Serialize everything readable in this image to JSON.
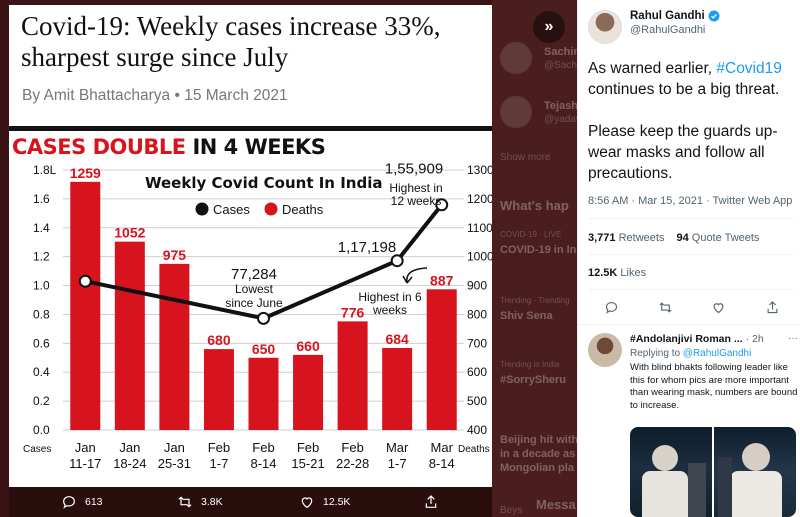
{
  "media": {
    "headline": "Covid-19: Weekly cases increase 33%, sharpest surge since July",
    "byline": "By Amit Bhattacharya • 15 March 2021",
    "graphic_title_red": "CASES DOUBLE",
    "graphic_title_black": "IN 4 WEEKS"
  },
  "chart_data": {
    "type": "bar",
    "title": "Weekly Covid Count In India",
    "legend": [
      "Cases",
      "Deaths"
    ],
    "categories": [
      [
        "Jan",
        "11-17"
      ],
      [
        "Jan",
        "18-24"
      ],
      [
        "Jan",
        "25-31"
      ],
      [
        "Feb",
        "1-7"
      ],
      [
        "Feb",
        "8-14"
      ],
      [
        "Feb",
        "15-21"
      ],
      [
        "Feb",
        "22-28"
      ],
      [
        "Mar",
        "1-7"
      ],
      [
        "Mar",
        "8-14"
      ]
    ],
    "series": [
      {
        "name": "Deaths",
        "type": "bar",
        "axis": "right",
        "values": [
          1259,
          1052,
          975,
          680,
          650,
          660,
          776,
          684,
          887
        ]
      },
      {
        "name": "Cases",
        "type": "line",
        "axis": "left",
        "unit": "L",
        "values": [
          1.03,
          null,
          null,
          null,
          0.77284,
          null,
          null,
          1.17198,
          1.55909
        ]
      }
    ],
    "left_axis": {
      "label": "Cases",
      "ticks": [
        "0.0",
        "0.2",
        "0.4",
        "0.6",
        "0.8",
        "1.0",
        "1.2",
        "1.4",
        "1.6",
        "1.8L"
      ],
      "ylim": [
        0,
        1.8
      ]
    },
    "right_axis": {
      "label": "Deaths",
      "ticks": [
        "400",
        "500",
        "600",
        "700",
        "800",
        "900",
        "1000",
        "1100",
        "1200",
        "1300"
      ],
      "ylim": [
        400,
        1300
      ]
    },
    "annotations": [
      {
        "value": "1,55,909",
        "lines": [
          "Highest in",
          "12 weeks"
        ]
      },
      {
        "value": "77,284",
        "lines": [
          "Lowest",
          "since June"
        ]
      },
      {
        "value": "1,17,198",
        "lines": [
          "Highest in 6",
          "weeks"
        ]
      }
    ]
  },
  "media_actions": {
    "replies": "613",
    "retweets": "3.8K",
    "likes": "12.5K"
  },
  "backdrop": {
    "texts": [
      "Sachin",
      "@Sach",
      "Tejash",
      "@yadav",
      "Show more",
      "What's hap",
      "COVID-19 · LIVE",
      "COVID-19 in In",
      "Trending · Trending",
      "Shiv Sena",
      "Trending in India",
      "#SorrySheru",
      "Beijing hit with",
      "in a decade as",
      "Mongolian pla",
      "Beys",
      "Messa"
    ]
  },
  "tweet": {
    "author_name": "Rahul Gandhi",
    "author_handle": "@RahulGandhi",
    "text_before": "As warned earlier, ",
    "hashtag": "#Covid19",
    "text_after": " continues to be a big threat.",
    "text_para2": "Please keep the guards up- wear masks and follow all precautions.",
    "timestamp": "8:56 AM · Mar 15, 2021 · Twitter Web App",
    "retweets_count": "3,771",
    "retweets_label": "Retweets",
    "quotes_count": "94",
    "quotes_label": "Quote Tweets",
    "likes_count": "12.5K",
    "likes_label": "Likes"
  },
  "reply": {
    "name": "#Andolanjivi Roman ...",
    "time": "· 2h",
    "more": "···",
    "replying_to": "Replying to ",
    "replying_handle": "@RahulGandhi",
    "text": "With blind bhakts following leader like this for whom pics are more important than wearing mask, numbers are bound to increase."
  },
  "colors": {
    "accent": "#1d9bf0",
    "chart_red": "#d7141e",
    "line": "#111111"
  }
}
